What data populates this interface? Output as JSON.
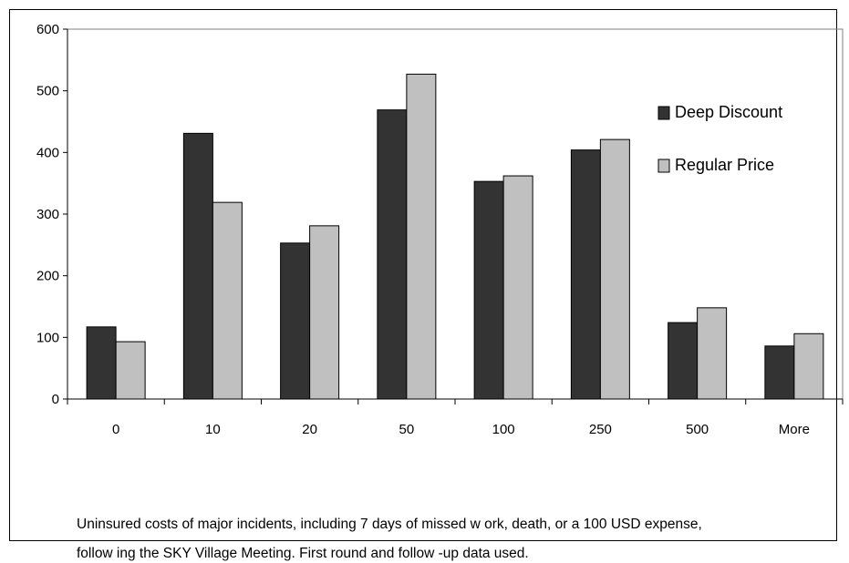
{
  "chart_data": {
    "type": "bar",
    "categories": [
      "0",
      "10",
      "20",
      "50",
      "100",
      "250",
      "500",
      "More"
    ],
    "series": [
      {
        "name": "Deep Discount",
        "values": [
          117,
          431,
          253,
          469,
          353,
          404,
          124,
          86
        ],
        "color": "#333333"
      },
      {
        "name": "Regular Price",
        "values": [
          93,
          319,
          281,
          527,
          362,
          421,
          148,
          106
        ],
        "color": "#c0c0c0"
      }
    ],
    "ylim": [
      0,
      600
    ],
    "yticks": [
      0,
      100,
      200,
      300,
      400,
      500,
      600
    ],
    "grid": false,
    "legend_position": "top-right"
  },
  "caption": {
    "line1": "Uninsured costs of major incidents, including 7 days of missed w ork, death, or a 100 USD expense,",
    "line2": "follow ing the SKY Village Meeting.  First round and follow -up data used."
  }
}
